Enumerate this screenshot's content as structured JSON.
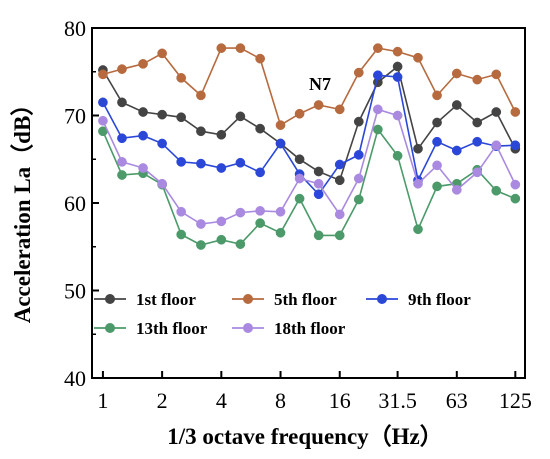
{
  "chart_data": {
    "type": "line",
    "annotation": "N7",
    "xlabel": "1/3 octave frequency（Hz）",
    "ylabel": "Acceleration La（dB）",
    "ylim": [
      40,
      80
    ],
    "yticks": [
      40,
      50,
      60,
      70,
      80
    ],
    "x": [
      1,
      1.25,
      1.6,
      2,
      2.5,
      3.15,
      4,
      5,
      6.3,
      8,
      10,
      12.5,
      16,
      20,
      25,
      31.5,
      40,
      50,
      63,
      80,
      100,
      125
    ],
    "xticks": [
      "1",
      "2",
      "4",
      "8",
      "16",
      "31.5",
      "63",
      "125"
    ],
    "xtick_values": [
      1,
      2,
      4,
      8,
      16,
      31.5,
      63,
      125
    ],
    "grid": false,
    "legend_position": "bottom-left",
    "series": [
      {
        "name": "1st floor",
        "color": "#444444",
        "marker": "circle",
        "values": [
          75.2,
          71.5,
          70.4,
          70.1,
          69.8,
          68.2,
          67.8,
          69.9,
          68.5,
          66.8,
          65.0,
          63.6,
          62.6,
          69.3,
          73.8,
          75.6,
          66.2,
          69.2,
          71.2,
          69.2,
          70.4,
          66.2
        ]
      },
      {
        "name": "5th floor",
        "color": "#b66a3e",
        "marker": "circle",
        "values": [
          74.7,
          75.3,
          75.9,
          77.1,
          74.3,
          72.3,
          77.7,
          77.7,
          76.5,
          68.9,
          70.2,
          71.2,
          70.7,
          74.9,
          77.7,
          77.3,
          76.6,
          72.3,
          74.8,
          74.1,
          74.7,
          70.4
        ]
      },
      {
        "name": "9th floor",
        "color": "#2b47d8",
        "marker": "circle",
        "values": [
          71.5,
          67.4,
          67.7,
          66.8,
          64.7,
          64.5,
          64.0,
          64.6,
          63.5,
          66.8,
          63.3,
          61.0,
          64.4,
          65.5,
          74.6,
          74.4,
          62.6,
          67.0,
          66.0,
          67.0,
          66.5,
          66.6
        ]
      },
      {
        "name": "13th floor",
        "color": "#4c9a6a",
        "marker": "circle",
        "values": [
          68.2,
          63.2,
          63.4,
          62.1,
          56.4,
          55.2,
          55.8,
          55.3,
          57.7,
          56.6,
          60.5,
          56.3,
          56.3,
          60.4,
          68.4,
          65.4,
          57.0,
          61.9,
          62.2,
          63.8,
          61.4,
          60.5
        ]
      },
      {
        "name": "18th floor",
        "color": "#a98ae0",
        "marker": "circle",
        "values": [
          69.4,
          64.7,
          64.0,
          62.2,
          59.0,
          57.6,
          57.9,
          58.9,
          59.1,
          59.0,
          62.8,
          62.2,
          58.7,
          62.8,
          70.7,
          70.0,
          62.2,
          64.3,
          61.5,
          63.5,
          66.6,
          62.1
        ]
      }
    ]
  }
}
